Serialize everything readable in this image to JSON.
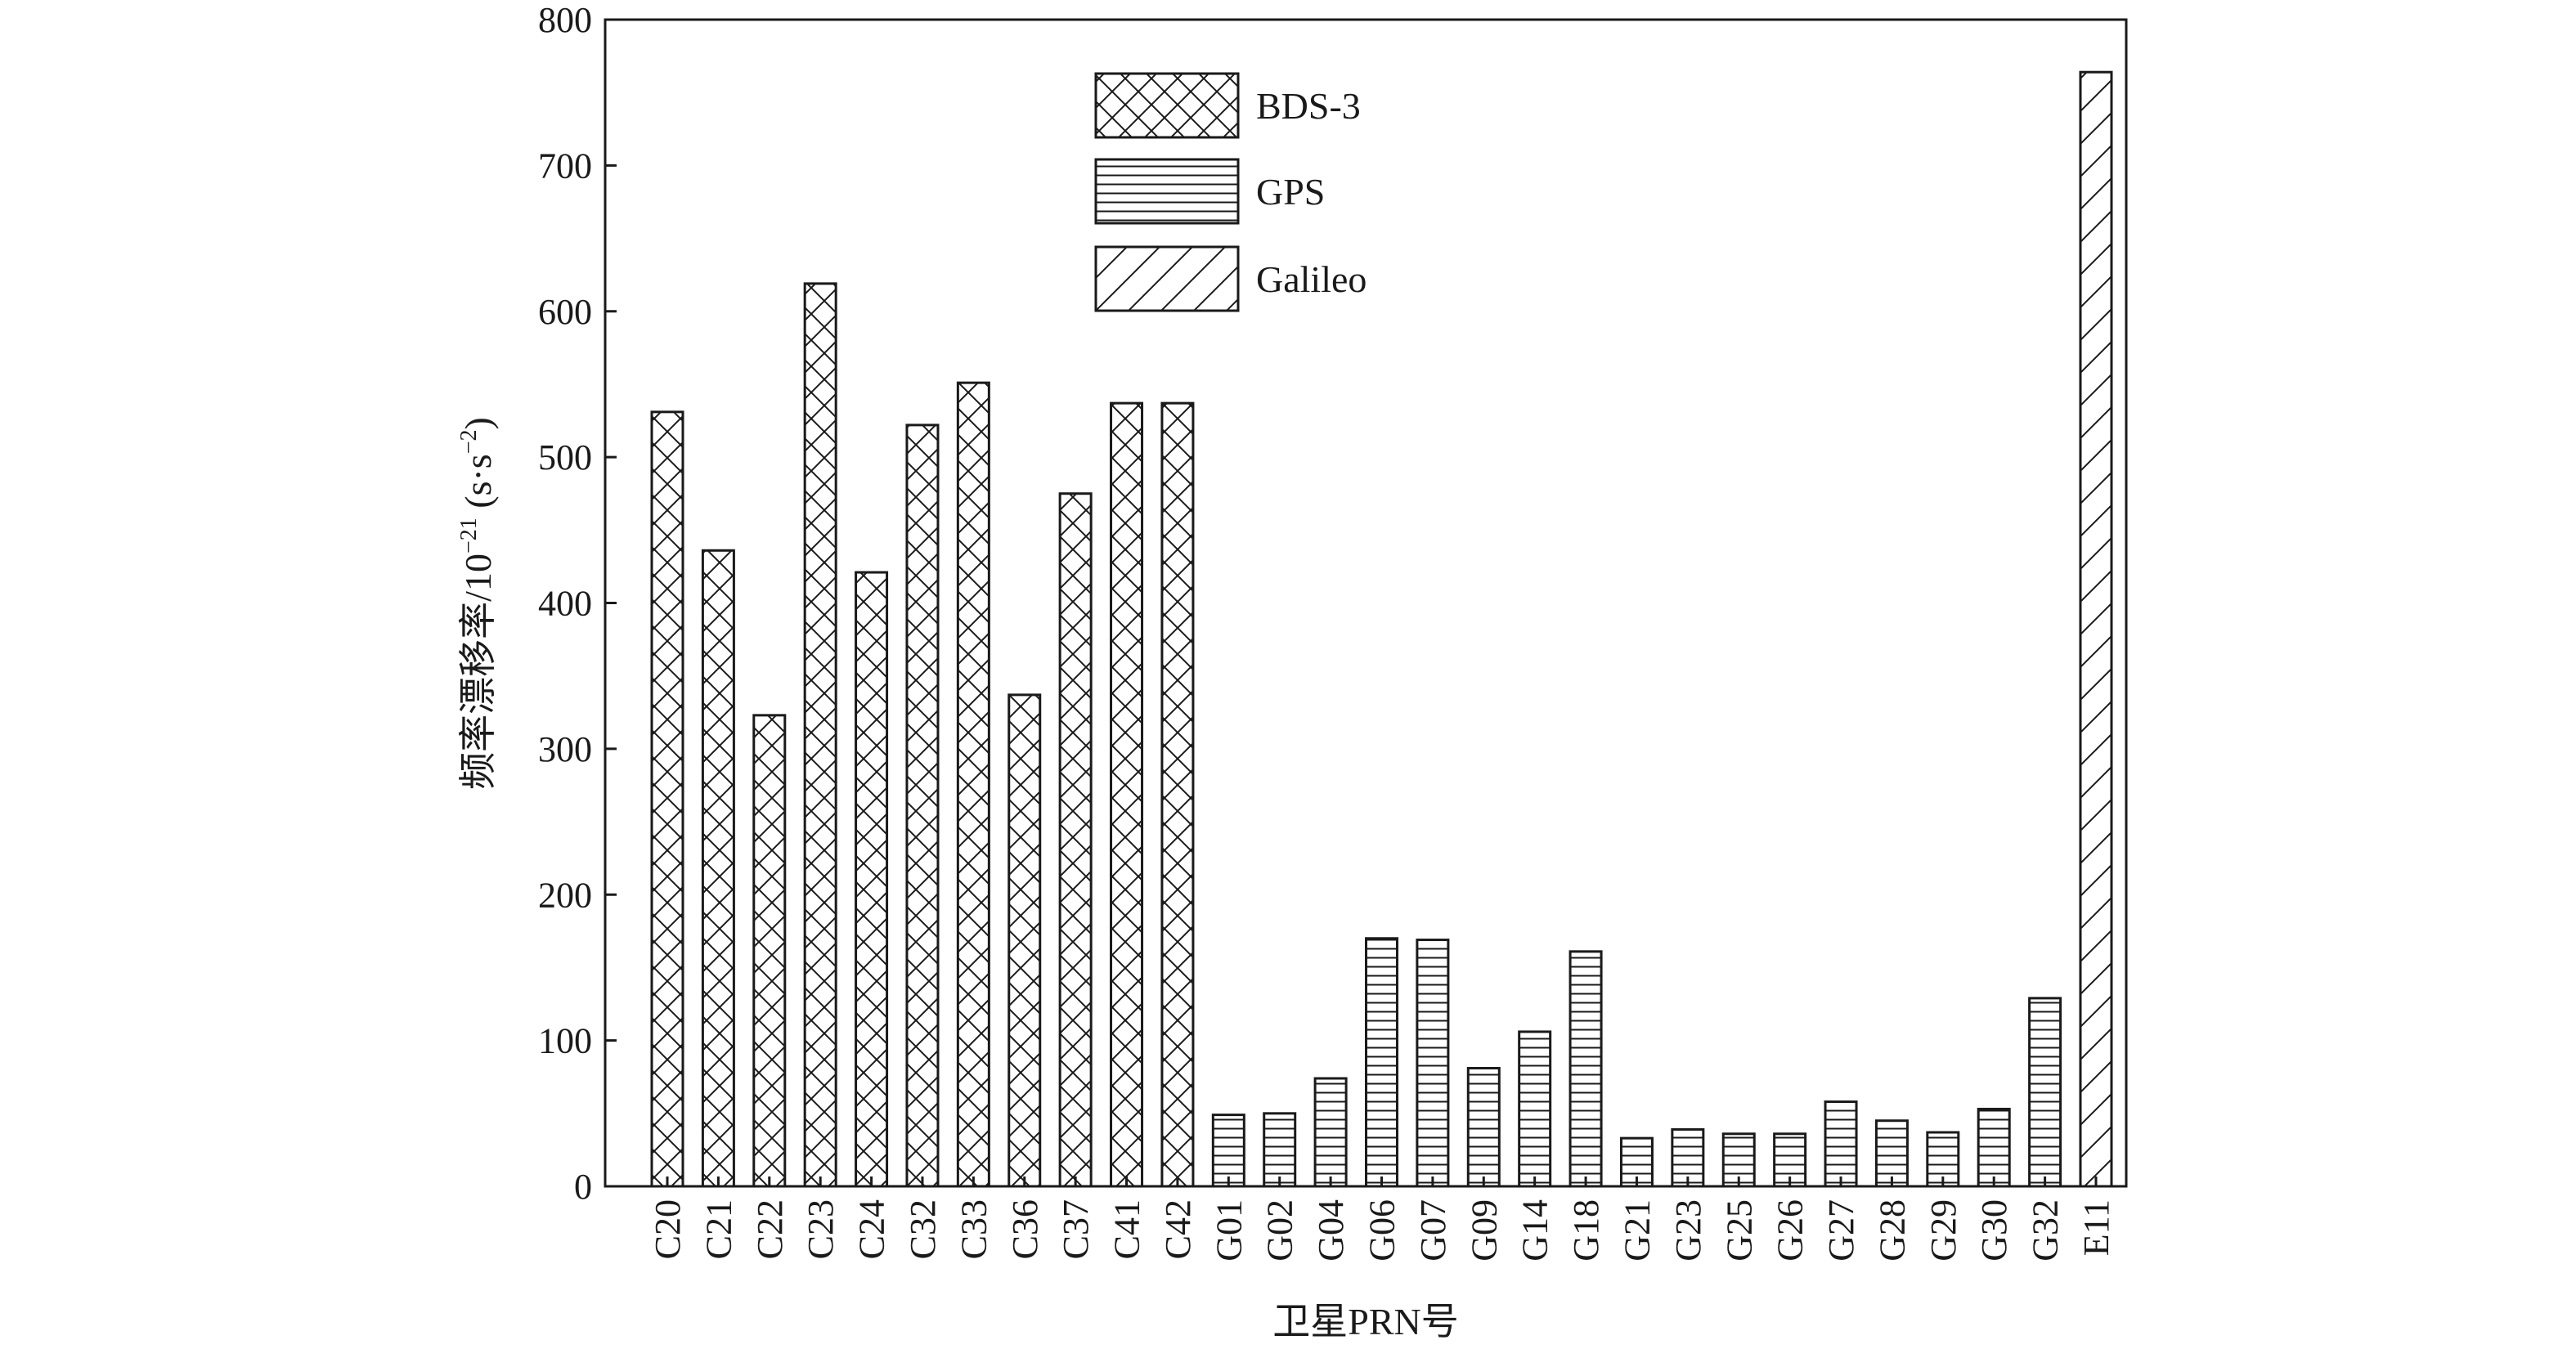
{
  "chart_data": {
    "type": "bar",
    "xlabel": "卫星PRN号",
    "ylabel": "频率漂移率/10",
    "ylabel_exponent": "−21",
    "ylabel_unit_open": " (s·s",
    "ylabel_unit_exponent": "−2",
    "ylabel_unit_close": ")",
    "ylim": [
      0,
      800
    ],
    "yticks": [
      0,
      100,
      200,
      300,
      400,
      500,
      600,
      700,
      800
    ],
    "legend_position": "top-center",
    "grid": false,
    "categories": [
      "C20",
      "C21",
      "C22",
      "C23",
      "C24",
      "C32",
      "C33",
      "C36",
      "C37",
      "C41",
      "C42",
      "G01",
      "G02",
      "G04",
      "G06",
      "G07",
      "G09",
      "G14",
      "G18",
      "G21",
      "G23",
      "G25",
      "G26",
      "G27",
      "G28",
      "G29",
      "G30",
      "G32",
      "E11"
    ],
    "series": [
      {
        "name": "BDS-3",
        "pattern": "crosshatch",
        "values": [
          531,
          436,
          323,
          619,
          421,
          522,
          551,
          337,
          475,
          537,
          537,
          null,
          null,
          null,
          null,
          null,
          null,
          null,
          null,
          null,
          null,
          null,
          null,
          null,
          null,
          null,
          null,
          null,
          null
        ]
      },
      {
        "name": "GPS",
        "pattern": "horizontal",
        "values": [
          null,
          null,
          null,
          null,
          null,
          null,
          null,
          null,
          null,
          null,
          null,
          49,
          50,
          74,
          170,
          169,
          81,
          106,
          161,
          33,
          39,
          36,
          36,
          58,
          45,
          37,
          53,
          129,
          null
        ]
      },
      {
        "name": "Galileo",
        "pattern": "diagonal",
        "values": [
          null,
          null,
          null,
          null,
          null,
          null,
          null,
          null,
          null,
          null,
          null,
          null,
          null,
          null,
          null,
          null,
          null,
          null,
          null,
          null,
          null,
          null,
          null,
          null,
          null,
          null,
          null,
          null,
          764
        ]
      }
    ]
  },
  "colors": {
    "stroke": "#1a1a1a",
    "background": "#ffffff"
  }
}
